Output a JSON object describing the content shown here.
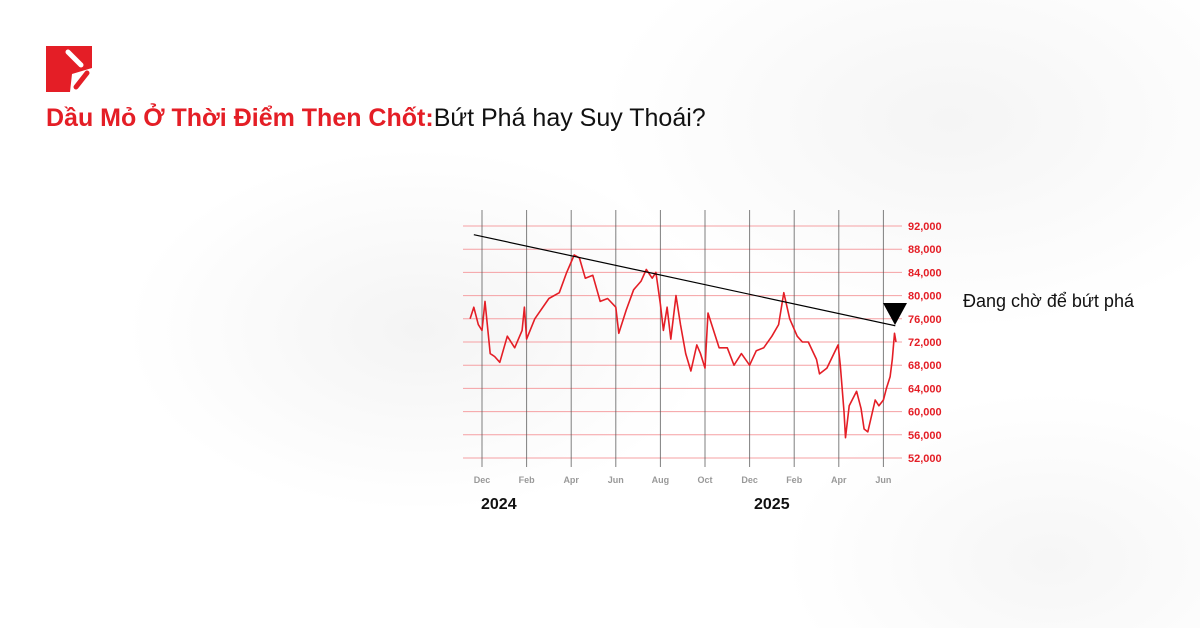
{
  "header": {
    "title_highlight": "Dầu Mỏ Ở Thời Điểm Then Chốt:",
    "title_rest": "Bứt Phá hay Suy Thoái?"
  },
  "colors": {
    "brand": "#e41e26",
    "price_line": "#e41e26",
    "trendline": "#000000",
    "gridline": "#f5a0a3",
    "month_line": "#555555"
  },
  "logo": {
    "icon": "brand-logo-icon"
  },
  "annotation": {
    "text": "Đang chờ để bứt phá",
    "marker_icon": "triangle-down-icon"
  },
  "chart_data": {
    "type": "line",
    "title": "",
    "xlabel": "",
    "ylabel": "",
    "ylim": [
      52000,
      92000
    ],
    "grid": true,
    "y_ticks": [
      52000,
      56000,
      60000,
      64000,
      68000,
      72000,
      76000,
      80000,
      84000,
      88000,
      92000
    ],
    "y_tick_labels": [
      "52,000",
      "56,000",
      "60,000",
      "64,000",
      "68,000",
      "72,000",
      "76,000",
      "80,000",
      "84,000",
      "88,000",
      "92,000"
    ],
    "x_ticks": [
      {
        "date": "2023-12-01",
        "label": "Dec"
      },
      {
        "date": "2024-02-01",
        "label": "Feb"
      },
      {
        "date": "2024-04-01",
        "label": "Apr"
      },
      {
        "date": "2024-06-01",
        "label": "Jun"
      },
      {
        "date": "2024-08-01",
        "label": "Aug"
      },
      {
        "date": "2024-10-01",
        "label": "Oct"
      },
      {
        "date": "2024-12-01",
        "label": "Dec"
      },
      {
        "date": "2025-02-01",
        "label": "Feb"
      },
      {
        "date": "2025-04-01",
        "label": "Apr"
      },
      {
        "date": "2025-06-01",
        "label": "Jun"
      }
    ],
    "year_labels": [
      {
        "date": "2024-01-01",
        "label": "2024"
      },
      {
        "date": "2025-01-01",
        "label": "2025"
      }
    ],
    "series": [
      {
        "x": [
          "2023-11-15",
          "2023-11-20",
          "2023-11-26",
          "2023-12-01",
          "2023-12-05",
          "2023-12-12",
          "2023-12-18",
          "2023-12-25",
          "2024-01-05",
          "2024-01-15",
          "2024-01-25",
          "2024-01-28",
          "2024-02-01",
          "2024-02-12",
          "2024-03-01",
          "2024-03-15",
          "2024-03-25",
          "2024-04-05",
          "2024-04-12",
          "2024-04-20",
          "2024-04-30",
          "2024-05-10",
          "2024-05-20",
          "2024-05-31",
          "2024-06-05",
          "2024-06-15",
          "2024-06-25",
          "2024-07-05",
          "2024-07-12",
          "2024-07-20",
          "2024-07-25",
          "2024-08-01",
          "2024-08-05",
          "2024-08-10",
          "2024-08-15",
          "2024-08-22",
          "2024-08-28",
          "2024-09-05",
          "2024-09-12",
          "2024-09-20",
          "2024-09-25",
          "2024-10-01",
          "2024-10-05",
          "2024-10-10",
          "2024-10-20",
          "2024-11-01",
          "2024-11-10",
          "2024-11-20",
          "2024-12-01",
          "2024-12-10",
          "2024-12-20",
          "2025-01-01",
          "2025-01-10",
          "2025-01-17",
          "2025-01-25",
          "2025-02-05",
          "2025-02-12",
          "2025-02-20",
          "2025-03-01",
          "2025-03-05",
          "2025-03-15",
          "2025-03-30",
          "2025-04-03",
          "2025-04-08",
          "2025-04-10",
          "2025-04-15",
          "2025-04-25",
          "2025-05-01",
          "2025-05-05",
          "2025-05-10",
          "2025-05-20",
          "2025-05-25",
          "2025-06-01",
          "2025-06-05",
          "2025-06-10",
          "2025-06-13",
          "2025-06-16",
          "2025-06-18"
        ],
        "y": [
          76000,
          78000,
          75000,
          74000,
          79000,
          70000,
          69500,
          68500,
          73000,
          71000,
          74000,
          78000,
          72500,
          76000,
          79500,
          80500,
          84000,
          87000,
          86500,
          83000,
          83500,
          79000,
          79500,
          78000,
          73500,
          77500,
          81000,
          82500,
          84500,
          83000,
          84000,
          78500,
          74000,
          78000,
          72500,
          80000,
          75000,
          70000,
          67000,
          71500,
          70000,
          67500,
          77000,
          75000,
          71000,
          71000,
          68000,
          70000,
          68000,
          70500,
          71000,
          73000,
          75000,
          80500,
          76000,
          73000,
          72000,
          72000,
          69000,
          66500,
          67500,
          71500,
          68000,
          60000,
          55500,
          61000,
          63500,
          60500,
          57000,
          56500,
          62000,
          61000,
          62000,
          64000,
          66000,
          69000,
          73500,
          72000
        ]
      }
    ],
    "trendline": {
      "start": {
        "date": "2023-11-20",
        "value": 90500
      },
      "end": {
        "date": "2025-06-17",
        "value": 74800
      }
    }
  }
}
